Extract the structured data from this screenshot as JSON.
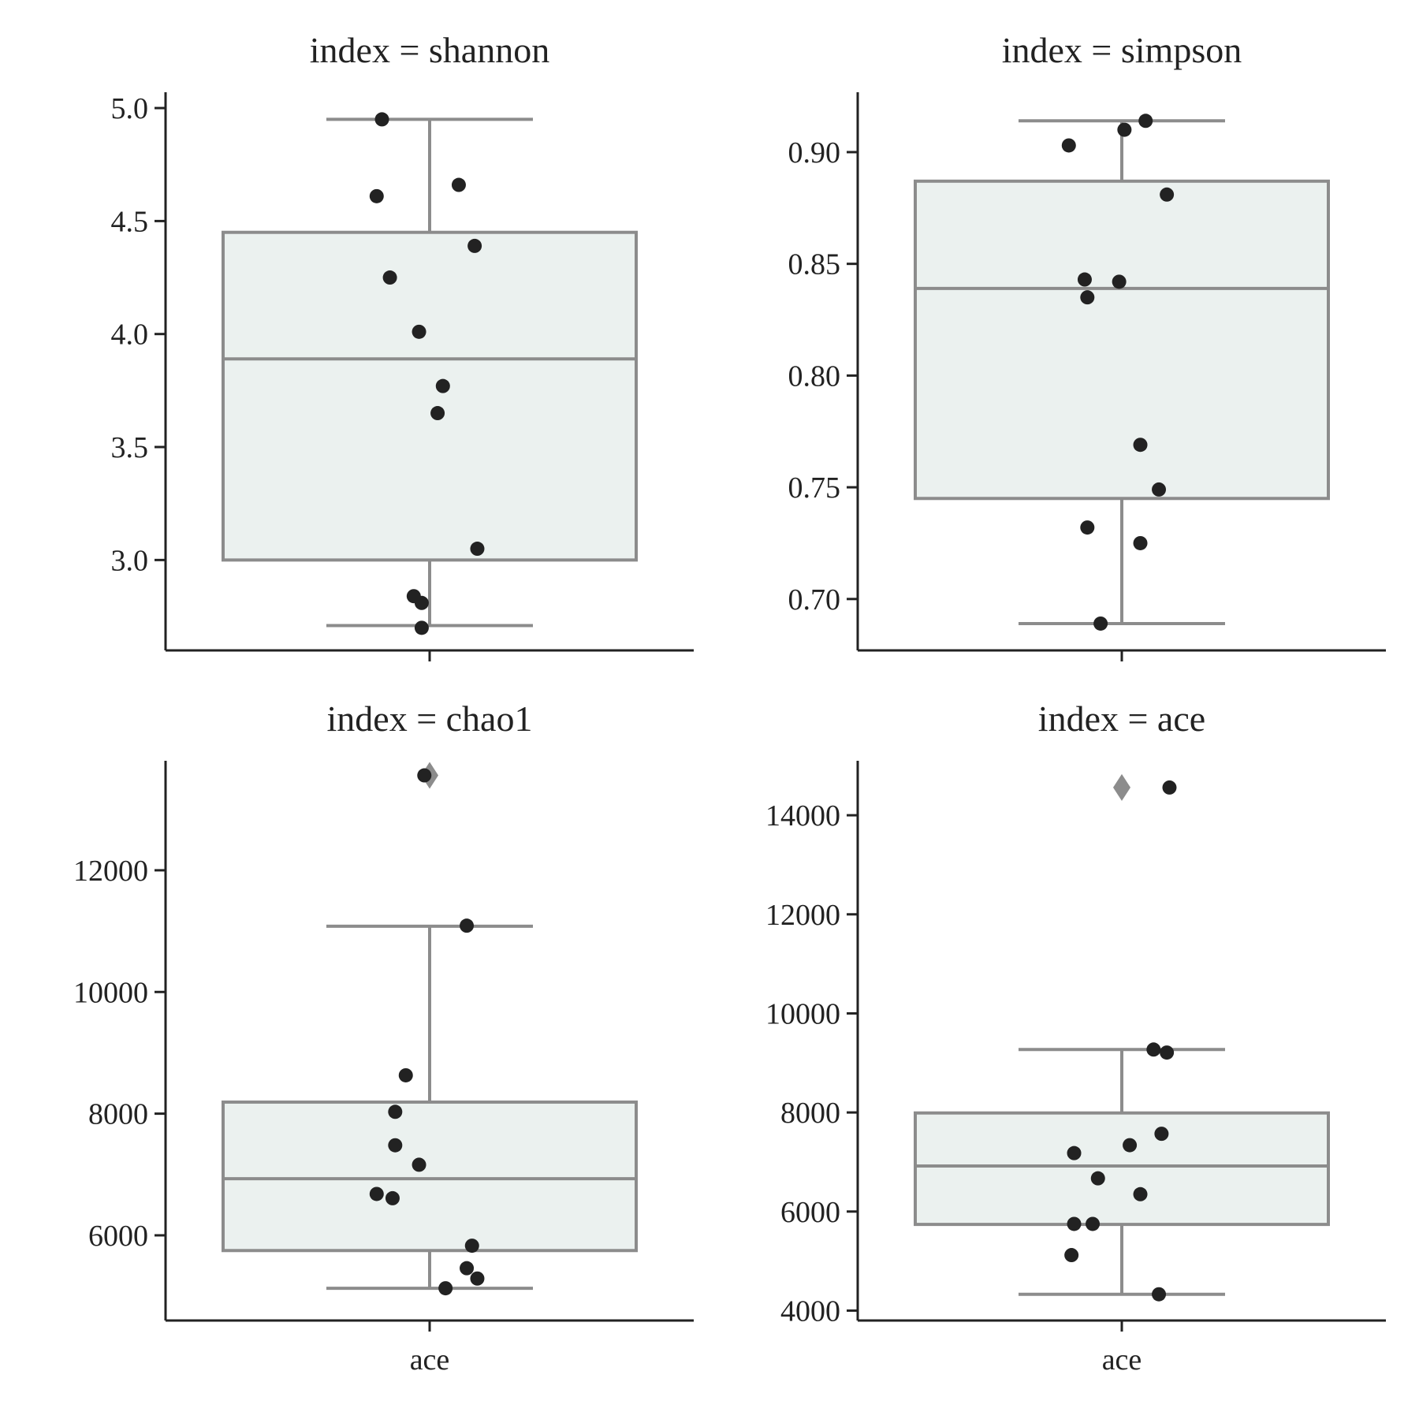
{
  "chart_data": [
    {
      "type": "box",
      "title": "index = shannon",
      "xlabel": "",
      "ylabel": "",
      "categories": [
        ""
      ],
      "ylim": [
        2.6,
        5.07
      ],
      "yticks": [
        3.0,
        3.5,
        4.0,
        4.5,
        5.0
      ],
      "ytick_labels": [
        "3.0",
        "3.5",
        "4.0",
        "4.5",
        "5.0"
      ],
      "box": {
        "whisker_low": 2.71,
        "q1": 3.0,
        "median": 3.89,
        "q3": 4.45,
        "whisker_high": 4.95
      },
      "outliers": [],
      "points": [
        {
          "jitter": -0.18,
          "y": 4.95
        },
        {
          "jitter": -0.2,
          "y": 4.61
        },
        {
          "jitter": 0.11,
          "y": 4.66
        },
        {
          "jitter": 0.17,
          "y": 4.39
        },
        {
          "jitter": -0.15,
          "y": 4.25
        },
        {
          "jitter": -0.04,
          "y": 4.01
        },
        {
          "jitter": 0.05,
          "y": 3.77
        },
        {
          "jitter": 0.03,
          "y": 3.65
        },
        {
          "jitter": 0.18,
          "y": 3.05
        },
        {
          "jitter": -0.06,
          "y": 2.84
        },
        {
          "jitter": -0.03,
          "y": 2.81
        },
        {
          "jitter": -0.03,
          "y": 2.7
        }
      ]
    },
    {
      "type": "box",
      "title": "index = simpson",
      "xlabel": "",
      "ylabel": "",
      "categories": [
        ""
      ],
      "ylim": [
        0.677,
        0.9268
      ],
      "yticks": [
        0.7,
        0.75,
        0.8,
        0.85,
        0.9
      ],
      "ytick_labels": [
        "0.70",
        "0.75",
        "0.80",
        "0.85",
        "0.90"
      ],
      "box": {
        "whisker_low": 0.689,
        "q1": 0.745,
        "median": 0.839,
        "q3": 0.887,
        "whisker_high": 0.914
      },
      "outliers": [],
      "points": [
        {
          "jitter": -0.2,
          "y": 0.903
        },
        {
          "jitter": 0.01,
          "y": 0.91
        },
        {
          "jitter": 0.09,
          "y": 0.914
        },
        {
          "jitter": 0.17,
          "y": 0.881
        },
        {
          "jitter": -0.14,
          "y": 0.843
        },
        {
          "jitter": -0.01,
          "y": 0.842
        },
        {
          "jitter": -0.13,
          "y": 0.835
        },
        {
          "jitter": 0.07,
          "y": 0.769
        },
        {
          "jitter": 0.14,
          "y": 0.749
        },
        {
          "jitter": -0.13,
          "y": 0.732
        },
        {
          "jitter": 0.07,
          "y": 0.725
        },
        {
          "jitter": -0.08,
          "y": 0.689
        }
      ]
    },
    {
      "type": "box",
      "title": "index = chao1",
      "xlabel": "",
      "ylabel": "",
      "categories": [
        "ace"
      ],
      "ylim": [
        4600,
        13800
      ],
      "yticks": [
        6000,
        8000,
        10000,
        12000
      ],
      "ytick_labels": [
        "6000",
        "8000",
        "10000",
        "12000"
      ],
      "box": {
        "whisker_low": 5130,
        "q1": 5750,
        "median": 6930,
        "q3": 8190,
        "whisker_high": 11080
      },
      "outliers": [
        13560
      ],
      "points": [
        {
          "jitter": -0.02,
          "y": 13560
        },
        {
          "jitter": 0.14,
          "y": 11090
        },
        {
          "jitter": -0.09,
          "y": 8630
        },
        {
          "jitter": -0.13,
          "y": 8030
        },
        {
          "jitter": -0.13,
          "y": 7480
        },
        {
          "jitter": -0.04,
          "y": 7160
        },
        {
          "jitter": -0.2,
          "y": 6680
        },
        {
          "jitter": -0.14,
          "y": 6610
        },
        {
          "jitter": 0.16,
          "y": 5830
        },
        {
          "jitter": 0.14,
          "y": 5460
        },
        {
          "jitter": 0.18,
          "y": 5290
        },
        {
          "jitter": 0.06,
          "y": 5130
        }
      ]
    },
    {
      "type": "box",
      "title": "index = ace",
      "xlabel": "",
      "ylabel": "",
      "categories": [
        "ace"
      ],
      "ylim": [
        3800,
        15100
      ],
      "yticks": [
        4000,
        6000,
        8000,
        10000,
        12000,
        14000
      ],
      "ytick_labels": [
        "4000",
        "6000",
        "8000",
        "10000",
        "12000",
        "14000"
      ],
      "box": {
        "whisker_low": 4330,
        "q1": 5740,
        "median": 6920,
        "q3": 7990,
        "whisker_high": 9270
      },
      "outliers": [
        14560
      ],
      "points": [
        {
          "jitter": 0.18,
          "y": 14560
        },
        {
          "jitter": 0.12,
          "y": 9270
        },
        {
          "jitter": 0.17,
          "y": 9210
        },
        {
          "jitter": 0.15,
          "y": 7570
        },
        {
          "jitter": 0.03,
          "y": 7340
        },
        {
          "jitter": -0.18,
          "y": 7180
        },
        {
          "jitter": -0.09,
          "y": 6670
        },
        {
          "jitter": 0.07,
          "y": 6350
        },
        {
          "jitter": -0.18,
          "y": 5750
        },
        {
          "jitter": -0.11,
          "y": 5750
        },
        {
          "jitter": -0.19,
          "y": 5120
        },
        {
          "jitter": 0.14,
          "y": 4330
        }
      ]
    }
  ]
}
